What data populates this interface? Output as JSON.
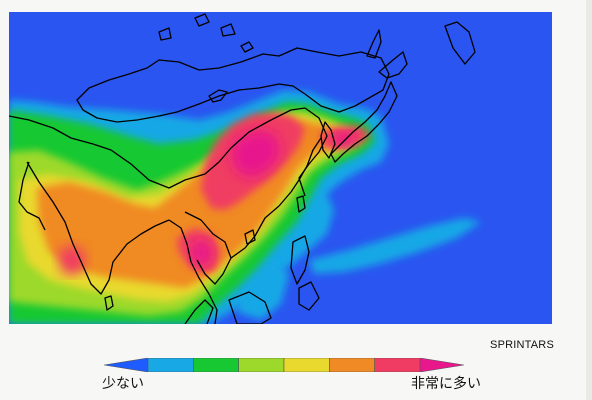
{
  "map": {
    "credit": "SPRINTARS",
    "ocean_color": "#2a55f0",
    "coastline_color": "#000000"
  },
  "legend": {
    "low_label": "少ない",
    "high_label": "非常に多い",
    "colors": [
      "#1e5cff",
      "#19a8e6",
      "#18c832",
      "#9cd92a",
      "#e9d92e",
      "#f08a24",
      "#f03c62",
      "#e8188c"
    ]
  }
}
